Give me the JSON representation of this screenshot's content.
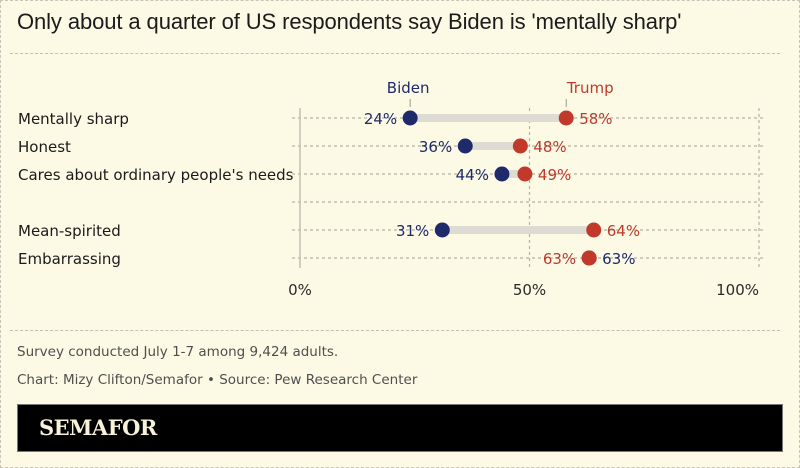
{
  "title": "Only about a quarter of US respondents say Biden is 'mentally sharp'",
  "footer": {
    "note": "Survey conducted July 1-7 among 9,424 adults.",
    "credit": "Chart: Mizy Clifton/Semafor • Source: Pew Research Center",
    "brand": "SEMAFOR"
  },
  "chart_data": {
    "type": "dumbbell",
    "title": "Only about a quarter of US respondents say Biden is 'mentally sharp'",
    "xlabel": "",
    "ylabel": "",
    "xlim": [
      0,
      100
    ],
    "x_ticks": [
      0,
      50,
      100
    ],
    "x_tick_labels": [
      "0%",
      "50%",
      "100%"
    ],
    "grid": true,
    "legend": "direct labels above first row",
    "series": [
      {
        "name": "Biden",
        "color": "#1f2a6b"
      },
      {
        "name": "Trump",
        "color": "#c0392b"
      }
    ],
    "categories": [
      "Mentally sharp",
      "Honest",
      "Cares about ordinary people's needs",
      "",
      "Mean-spirited",
      "Embarrassing"
    ],
    "rows": [
      {
        "label": "Mentally sharp",
        "Biden": 24,
        "Trump": 58
      },
      {
        "label": "Honest",
        "Biden": 36,
        "Trump": 48
      },
      {
        "label": "Cares about ordinary people's needs",
        "Biden": 44,
        "Trump": 49
      },
      {
        "label": "",
        "Biden": null,
        "Trump": null
      },
      {
        "label": "Mean-spirited",
        "Biden": 31,
        "Trump": 64
      },
      {
        "label": "Embarrassing",
        "Biden": 63,
        "Trump": 63
      }
    ]
  }
}
